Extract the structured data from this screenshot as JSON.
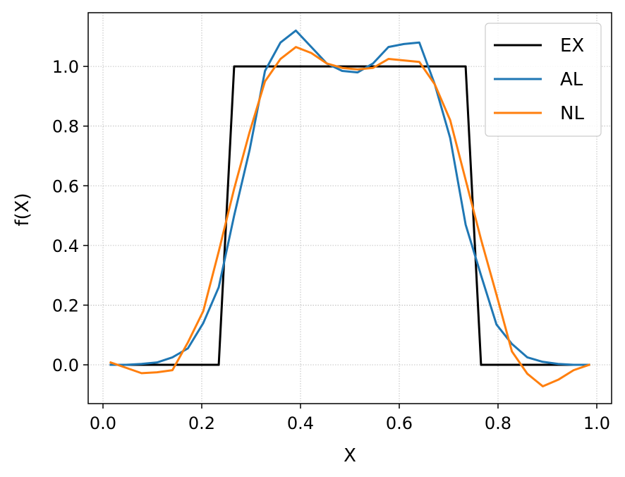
{
  "chart_data": {
    "type": "line",
    "title": "",
    "xlabel": "X",
    "ylabel": "f(X)",
    "xlim": [
      -0.03,
      1.03
    ],
    "ylim": [
      -0.13,
      1.18
    ],
    "xticks": [
      0.0,
      0.2,
      0.4,
      0.6,
      0.8,
      1.0
    ],
    "xtick_labels": [
      "0.0",
      "0.2",
      "0.4",
      "0.6",
      "0.8",
      "1.0"
    ],
    "yticks": [
      0.0,
      0.2,
      0.4,
      0.6,
      0.8,
      1.0
    ],
    "ytick_labels": [
      "0.0",
      "0.2",
      "0.4",
      "0.6",
      "0.8",
      "1.0"
    ],
    "grid": true,
    "legend_position": "top-right",
    "series": [
      {
        "name": "EX",
        "color": "#000000",
        "x": [
          0.0156,
          0.2344,
          0.2656,
          0.7344,
          0.7656,
          0.9844
        ],
        "y": [
          0.0,
          0.0,
          1.0,
          1.0,
          0.0,
          0.0
        ]
      },
      {
        "name": "AL",
        "color": "#1f77b4",
        "x": [
          0.0156,
          0.0469,
          0.0781,
          0.1094,
          0.1406,
          0.1719,
          0.2031,
          0.2344,
          0.2656,
          0.2969,
          0.3281,
          0.3594,
          0.3906,
          0.4219,
          0.4531,
          0.4844,
          0.5156,
          0.5469,
          0.5781,
          0.6094,
          0.6406,
          0.6719,
          0.7031,
          0.7344,
          0.7656,
          0.7969,
          0.8281,
          0.8594,
          0.8906,
          0.9219,
          0.9531,
          0.9844
        ],
        "y": [
          0.0,
          0.0,
          0.003,
          0.008,
          0.025,
          0.055,
          0.14,
          0.26,
          0.5,
          0.72,
          0.985,
          1.08,
          1.12,
          1.065,
          1.01,
          0.985,
          0.98,
          1.01,
          1.065,
          1.075,
          1.08,
          0.94,
          0.76,
          0.47,
          0.3,
          0.135,
          0.07,
          0.025,
          0.01,
          0.003,
          0.0,
          0.0
        ]
      },
      {
        "name": "NL",
        "color": "#ff7f0e",
        "x": [
          0.0156,
          0.0469,
          0.0781,
          0.1094,
          0.1406,
          0.1719,
          0.2031,
          0.2344,
          0.2656,
          0.2969,
          0.3281,
          0.3594,
          0.3906,
          0.4219,
          0.4531,
          0.4844,
          0.5156,
          0.5469,
          0.5781,
          0.6094,
          0.6406,
          0.6719,
          0.7031,
          0.7344,
          0.7656,
          0.7969,
          0.8281,
          0.8594,
          0.8906,
          0.9219,
          0.9531,
          0.9844
        ],
        "y": [
          0.008,
          -0.01,
          -0.028,
          -0.025,
          -0.018,
          0.075,
          0.18,
          0.38,
          0.59,
          0.78,
          0.95,
          1.025,
          1.065,
          1.045,
          1.01,
          0.995,
          0.99,
          0.995,
          1.025,
          1.02,
          1.015,
          0.94,
          0.82,
          0.62,
          0.42,
          0.235,
          0.045,
          -0.03,
          -0.072,
          -0.05,
          -0.018,
          0.0
        ]
      }
    ]
  }
}
